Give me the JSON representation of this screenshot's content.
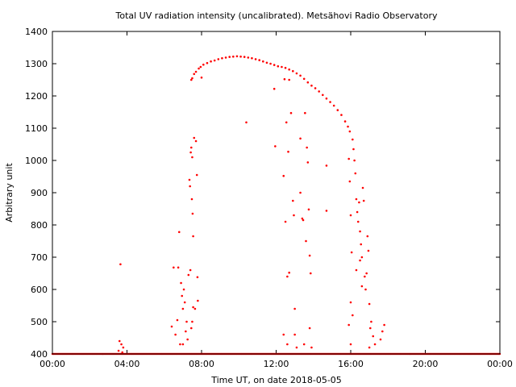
{
  "chart_data": {
    "type": "scatter",
    "title": "Total UV radiation intensity (uncalibrated). Metsähovi Radio Observatory",
    "xlabel": "Time UT, on date 2018-05-05",
    "ylabel": "Arbitrary unit",
    "xlim": [
      0,
      24
    ],
    "ylim": [
      400,
      1400
    ],
    "grid": false,
    "x_ticks": [
      {
        "value": 0,
        "label": "00:00"
      },
      {
        "value": 4,
        "label": "04:00"
      },
      {
        "value": 8,
        "label": "08:00"
      },
      {
        "value": 12,
        "label": "12:00"
      },
      {
        "value": 16,
        "label": "16:00"
      },
      {
        "value": 20,
        "label": "20:00"
      },
      {
        "value": 24,
        "label": "00:00"
      }
    ],
    "y_ticks": [
      {
        "value": 400,
        "label": "400"
      },
      {
        "value": 500,
        "label": "500"
      },
      {
        "value": 600,
        "label": "600"
      },
      {
        "value": 700,
        "label": "700"
      },
      {
        "value": 800,
        "label": "800"
      },
      {
        "value": 900,
        "label": "900"
      },
      {
        "value": 1000,
        "label": "1000"
      },
      {
        "value": 1100,
        "label": "1100"
      },
      {
        "value": 1200,
        "label": "1200"
      },
      {
        "value": 1300,
        "label": "1300"
      },
      {
        "value": 1400,
        "label": "1400"
      }
    ],
    "series": [
      {
        "color": "#ff0000",
        "points": [
          [
            3.6,
            440
          ],
          [
            3.7,
            430
          ],
          [
            3.55,
            410
          ],
          [
            3.65,
            678
          ],
          [
            3.8,
            420
          ],
          [
            3.75,
            405
          ],
          [
            6.5,
            668
          ],
          [
            6.75,
            668
          ],
          [
            6.8,
            778
          ],
          [
            6.9,
            620
          ],
          [
            6.95,
            580
          ],
          [
            7.0,
            540
          ],
          [
            7.05,
            600
          ],
          [
            7.1,
            560
          ],
          [
            7.15,
            470
          ],
          [
            7.2,
            500
          ],
          [
            6.6,
            460
          ],
          [
            6.7,
            505
          ],
          [
            6.85,
            430
          ],
          [
            7.0,
            430
          ],
          [
            7.25,
            445
          ],
          [
            6.4,
            485
          ],
          [
            7.3,
            645
          ],
          [
            7.35,
            940
          ],
          [
            7.38,
            920
          ],
          [
            7.42,
            1025
          ],
          [
            7.45,
            1040
          ],
          [
            7.48,
            880
          ],
          [
            7.5,
            1010
          ],
          [
            7.52,
            835
          ],
          [
            7.55,
            765
          ],
          [
            7.6,
            1070
          ],
          [
            7.65,
            540
          ],
          [
            7.7,
            1060
          ],
          [
            7.75,
            955
          ],
          [
            7.78,
            638
          ],
          [
            7.8,
            565
          ],
          [
            7.4,
            660
          ],
          [
            7.45,
            480
          ],
          [
            7.5,
            500
          ],
          [
            7.55,
            545
          ],
          [
            7.45,
            1250
          ],
          [
            7.5,
            1255
          ],
          [
            7.6,
            1268
          ],
          [
            7.7,
            1275
          ],
          [
            7.85,
            1285
          ],
          [
            7.95,
            1290
          ],
          [
            8.1,
            1297
          ],
          [
            8.3,
            1302
          ],
          [
            8.5,
            1307
          ],
          [
            8.7,
            1310
          ],
          [
            8.9,
            1314
          ],
          [
            9.1,
            1317
          ],
          [
            9.3,
            1319
          ],
          [
            9.5,
            1321
          ],
          [
            9.7,
            1322
          ],
          [
            9.9,
            1323
          ],
          [
            10.1,
            1322
          ],
          [
            10.3,
            1321
          ],
          [
            10.5,
            1319
          ],
          [
            10.7,
            1317
          ],
          [
            10.9,
            1314
          ],
          [
            11.1,
            1311
          ],
          [
            11.3,
            1307
          ],
          [
            11.5,
            1303
          ],
          [
            11.7,
            1300
          ],
          [
            11.9,
            1296
          ],
          [
            12.1,
            1292
          ],
          [
            12.3,
            1290
          ],
          [
            12.5,
            1287
          ],
          [
            12.7,
            1282
          ],
          [
            12.9,
            1277
          ],
          [
            13.1,
            1270
          ],
          [
            13.3,
            1263
          ],
          [
            13.5,
            1253
          ],
          [
            13.7,
            1242
          ],
          [
            13.9,
            1232
          ],
          [
            14.1,
            1224
          ],
          [
            14.3,
            1214
          ],
          [
            14.5,
            1203
          ],
          [
            14.7,
            1192
          ],
          [
            14.9,
            1181
          ],
          [
            15.1,
            1170
          ],
          [
            15.3,
            1156
          ],
          [
            15.5,
            1141
          ],
          [
            15.7,
            1121
          ],
          [
            15.85,
            1105
          ],
          [
            15.95,
            1090
          ],
          [
            8.0,
            1257
          ],
          [
            10.4,
            1118
          ],
          [
            11.9,
            1222
          ],
          [
            11.95,
            1044
          ],
          [
            12.4,
            952
          ],
          [
            12.55,
            1118
          ],
          [
            12.65,
            1027
          ],
          [
            12.7,
            652
          ],
          [
            12.8,
            1147
          ],
          [
            12.9,
            875
          ],
          [
            12.95,
            830
          ],
          [
            13.3,
            1068
          ],
          [
            13.45,
            815
          ],
          [
            13.55,
            1147
          ],
          [
            13.65,
            1040
          ],
          [
            13.7,
            994
          ],
          [
            13.75,
            848
          ],
          [
            13.8,
            705
          ],
          [
            13.85,
            650
          ],
          [
            14.7,
            984
          ],
          [
            14.7,
            844
          ],
          [
            12.5,
            810
          ],
          [
            12.6,
            640
          ],
          [
            13.0,
            540
          ],
          [
            13.3,
            900
          ],
          [
            13.6,
            750
          ],
          [
            13.4,
            820
          ],
          [
            12.45,
            1252
          ],
          [
            12.7,
            1250
          ],
          [
            12.4,
            460
          ],
          [
            12.6,
            430
          ],
          [
            13.0,
            460
          ],
          [
            13.1,
            420
          ],
          [
            13.5,
            430
          ],
          [
            13.8,
            480
          ],
          [
            13.9,
            420
          ],
          [
            15.9,
            1005
          ],
          [
            15.95,
            935
          ],
          [
            16.0,
            830
          ],
          [
            16.05,
            715
          ],
          [
            16.1,
            1065
          ],
          [
            16.15,
            1035
          ],
          [
            16.2,
            1000
          ],
          [
            16.25,
            960
          ],
          [
            16.3,
            880
          ],
          [
            16.35,
            840
          ],
          [
            16.4,
            810
          ],
          [
            16.45,
            870
          ],
          [
            16.5,
            780
          ],
          [
            16.55,
            740
          ],
          [
            16.6,
            700
          ],
          [
            16.65,
            915
          ],
          [
            16.7,
            875
          ],
          [
            16.75,
            640
          ],
          [
            16.8,
            600
          ],
          [
            16.85,
            650
          ],
          [
            16.9,
            765
          ],
          [
            16.95,
            720
          ],
          [
            17.0,
            555
          ],
          [
            17.1,
            500
          ],
          [
            16.0,
            560
          ],
          [
            16.1,
            520
          ],
          [
            15.9,
            490
          ],
          [
            16.3,
            660
          ],
          [
            16.5,
            690
          ],
          [
            16.6,
            610
          ],
          [
            17.05,
            480
          ],
          [
            17.2,
            455
          ],
          [
            17.3,
            430
          ],
          [
            17.6,
            445
          ],
          [
            17.7,
            470
          ],
          [
            17.8,
            490
          ],
          [
            17.0,
            420
          ],
          [
            16.0,
            430
          ]
        ]
      }
    ]
  }
}
